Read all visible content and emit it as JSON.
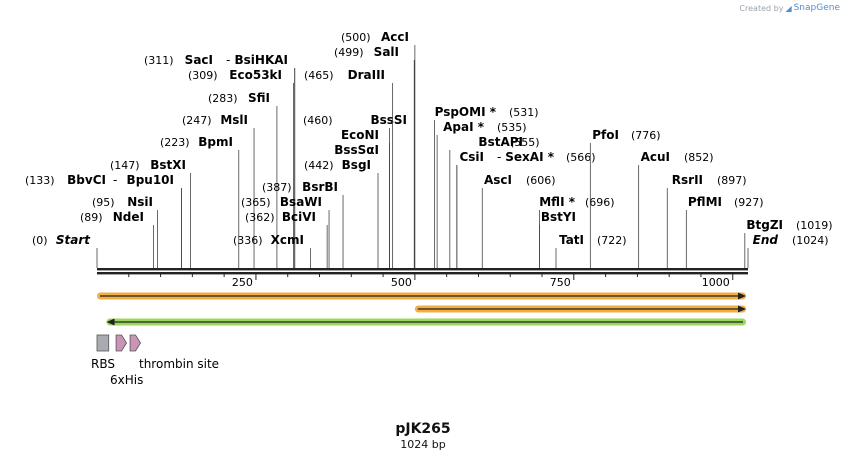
{
  "credit": {
    "prefix": "Created by",
    "brand": "SnapGene"
  },
  "plasmid": {
    "name": "pJK265",
    "size_label": "1024 bp",
    "length": 1024
  },
  "ruler": {
    "ticks": [
      250,
      500,
      750,
      1000
    ]
  },
  "sites": [
    {
      "pos": 0,
      "name": "Start",
      "num": "(0)",
      "italic": true
    },
    {
      "pos": 89,
      "name": "NdeI",
      "num": "(89)"
    },
    {
      "pos": 95,
      "name": "NsiI",
      "num": "(95)"
    },
    {
      "pos": 133,
      "name": "BbvCI",
      "num": "(133)"
    },
    {
      "pos": 133,
      "name": "Bpu10I",
      "num": ""
    },
    {
      "pos": 147,
      "name": "BstXI",
      "num": "(147)"
    },
    {
      "pos": 223,
      "name": "BpmI",
      "num": "(223)"
    },
    {
      "pos": 247,
      "name": "MslI",
      "num": "(247)"
    },
    {
      "pos": 283,
      "name": "SfiI",
      "num": "(283)"
    },
    {
      "pos": 309,
      "name": "Eco53kI",
      "num": "(309)"
    },
    {
      "pos": 311,
      "name": "SacI",
      "num": "(311)"
    },
    {
      "pos": 311,
      "name": "BsiHKAI",
      "num": ""
    },
    {
      "pos": 336,
      "name": "XcmI",
      "num": "(336)"
    },
    {
      "pos": 362,
      "name": "BciVI",
      "num": "(362)"
    },
    {
      "pos": 365,
      "name": "BsaWI",
      "num": "(365)"
    },
    {
      "pos": 387,
      "name": "BsrBI",
      "num": "(387)"
    },
    {
      "pos": 442,
      "name": "BsgI",
      "num": "(442)"
    },
    {
      "pos": 460,
      "name": "BssSI",
      "num": "(460)"
    },
    {
      "pos": 460,
      "name": "EcoNI",
      "num": ""
    },
    {
      "pos": 460,
      "name": "BssSαI",
      "num": ""
    },
    {
      "pos": 465,
      "name": "DraIII",
      "num": "(465)"
    },
    {
      "pos": 499,
      "name": "SalI",
      "num": "(499)"
    },
    {
      "pos": 500,
      "name": "AccI",
      "num": "(500)"
    },
    {
      "pos": 531,
      "name": "PspOMI *",
      "num": "(531)"
    },
    {
      "pos": 535,
      "name": "ApaI *",
      "num": "(535)"
    },
    {
      "pos": 555,
      "name": "BstAPI",
      "num": "(555)"
    },
    {
      "pos": 566,
      "name": "CsiI",
      "num": ""
    },
    {
      "pos": 566,
      "name": "SexAI *",
      "num": "(566)"
    },
    {
      "pos": 606,
      "name": "AscI",
      "num": "(606)"
    },
    {
      "pos": 696,
      "name": "MflI *",
      "num": "(696)"
    },
    {
      "pos": 696,
      "name": "BstYI",
      "num": ""
    },
    {
      "pos": 722,
      "name": "TatI",
      "num": "(722)"
    },
    {
      "pos": 776,
      "name": "PfoI",
      "num": "(776)"
    },
    {
      "pos": 852,
      "name": "AcuI",
      "num": "(852)"
    },
    {
      "pos": 897,
      "name": "RsrII",
      "num": "(897)"
    },
    {
      "pos": 927,
      "name": "PflMI",
      "num": "(927)"
    },
    {
      "pos": 1019,
      "name": "BtgZI",
      "num": "(1019)"
    },
    {
      "pos": 1024,
      "name": "End",
      "num": "(1024)",
      "italic": true
    }
  ],
  "orfs": [
    {
      "start": 0,
      "end": 1024,
      "direction": "forward",
      "color": "#f0a020"
    },
    {
      "start": 500,
      "end": 1024,
      "direction": "forward",
      "color": "#f0a020"
    },
    {
      "start": 15,
      "end": 1024,
      "direction": "reverse",
      "color": "#8ad040"
    }
  ],
  "features": [
    {
      "name": "RBS",
      "start": 0,
      "end": 20,
      "kind": "box",
      "color": "#a8acb2"
    },
    {
      "name": "6xHis",
      "start": 30,
      "end": 48,
      "kind": "arrow",
      "color": "#c896b4"
    },
    {
      "name": "thrombin site",
      "start": 52,
      "end": 70,
      "kind": "arrow",
      "color": "#c896b4"
    }
  ]
}
